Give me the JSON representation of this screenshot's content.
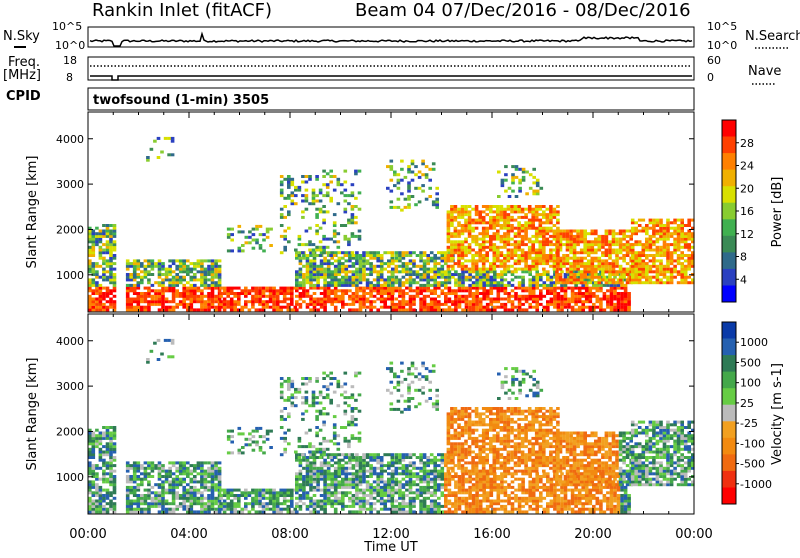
{
  "header": {
    "station_title": "Rankin Inlet (fitACF)",
    "beam_title": "Beam 04   07/Dec/2016 - 08/Dec/2016"
  },
  "top_strips": {
    "nsky_label": "N.Sky",
    "nsearch_label": "N.Search",
    "freq_label": "Freq.",
    "freq_unit": "[MHz]",
    "nave_label": "Nave",
    "cpid_label": "CPID",
    "cpid_text": "twofsound (1-min) 3505",
    "noise_ticks": [
      "10^5",
      "10^0"
    ],
    "freq_ticks": [
      "18",
      "8"
    ],
    "nave_ticks": [
      "60",
      "0"
    ]
  },
  "chart_data": [
    {
      "type": "heatmap",
      "name": "power",
      "ylabel": "Slant Range [km]",
      "colorbar_label": "Power [dB]",
      "ylim": [
        180,
        4590
      ],
      "yticks": [
        1000,
        2000,
        3000,
        4000
      ],
      "colorbar_ticks": [
        "28",
        "24",
        "20",
        "16",
        "12",
        "8",
        "4"
      ],
      "colorbar_colors": [
        "#ff0000",
        "#ff4000",
        "#ff8000",
        "#f0b000",
        "#d8e000",
        "#88cc30",
        "#40b050",
        "#3a8a55",
        "#2f6a8a",
        "#2a40c0",
        "#0000ff"
      ]
    },
    {
      "type": "heatmap",
      "name": "velocity",
      "ylabel": "Slant Range [km]",
      "colorbar_label": "Velocity [m s-1]",
      "ylim": [
        180,
        4590
      ],
      "yticks": [
        1000,
        2000,
        3000,
        4000
      ],
      "colorbar_ticks": [
        "1000",
        "500",
        "100",
        "25",
        "-25",
        "-100",
        "-500",
        "-1000"
      ],
      "colorbar_colors": [
        "#0a3aa8",
        "#2560b0",
        "#2e7a55",
        "#44a84a",
        "#66cc44",
        "#bbbbbb",
        "#f2a020",
        "#f28a10",
        "#f06a10",
        "#f03010",
        "#ff0000"
      ]
    }
  ],
  "time_axis": {
    "xlabel": "Time UT",
    "ticks": [
      "00:00",
      "04:00",
      "08:00",
      "12:00",
      "16:00",
      "20:00",
      "00:00"
    ]
  }
}
